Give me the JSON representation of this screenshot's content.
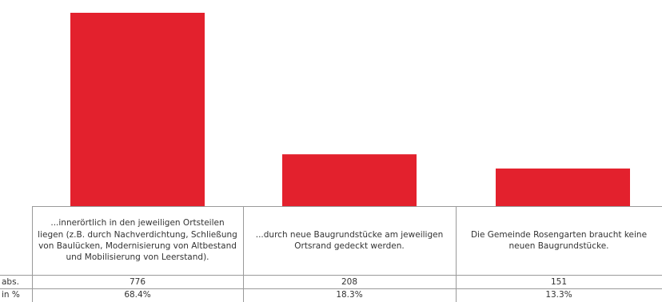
{
  "chart_data": {
    "type": "bar",
    "categories": [
      "...innerörtlich in den jeweiligen Ortsteilen liegen (z.B. durch Nachverdichtung, Schließung von Baulücken, Modernisierung von Altbestand und Mobilisierung von Leerstand).",
      "...durch neue Baugrundstücke am jeweiligen Ortsrand gedeckt werden.",
      "Die Gemeinde Rosengarten braucht keine neuen Baugrundstücke."
    ],
    "values": [
      776,
      208,
      151
    ],
    "percent_labels": [
      "68.4%",
      "18.3%",
      "13.3%"
    ],
    "value_labels": [
      "776",
      "208",
      "151"
    ],
    "row_labels": {
      "abs": "abs.",
      "pct": "in %"
    },
    "bar_color": "#e3212d",
    "ylim": [
      0,
      776
    ]
  }
}
